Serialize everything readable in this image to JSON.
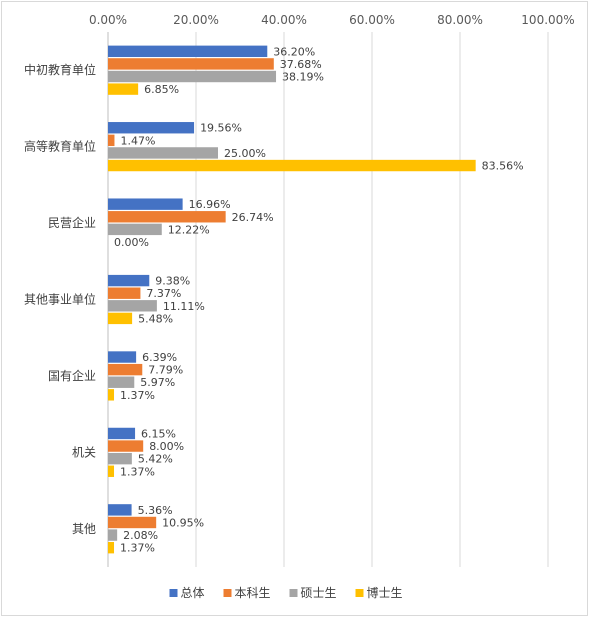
{
  "chart_data": {
    "type": "bar",
    "orientation": "horizontal",
    "categories": [
      "中初教育单位",
      "高等教育单位",
      "民营企业",
      "其他事业单位",
      "国有企业",
      "机关",
      "其他"
    ],
    "series": [
      {
        "name": "总体",
        "color": "#4472c4",
        "values": [
          36.2,
          19.56,
          16.96,
          9.38,
          6.39,
          6.15,
          5.36
        ],
        "labels": [
          "36.20%",
          "19.56%",
          "16.96%",
          "9.38%",
          "6.39%",
          "6.15%",
          "5.36%"
        ]
      },
      {
        "name": "本科生",
        "color": "#ed7d31",
        "values": [
          37.68,
          1.47,
          26.74,
          7.37,
          7.79,
          8.0,
          10.95
        ],
        "labels": [
          "37.68%",
          "1.47%",
          "26.74%",
          "7.37%",
          "7.79%",
          "8.00%",
          "10.95%"
        ]
      },
      {
        "name": "硕士生",
        "color": "#a5a5a5",
        "values": [
          38.19,
          25.0,
          12.22,
          11.11,
          5.97,
          5.42,
          2.08
        ],
        "labels": [
          "38.19%",
          "25.00%",
          "12.22%",
          "11.11%",
          "5.97%",
          "5.42%",
          "2.08%"
        ]
      },
      {
        "name": "博士生",
        "color": "#ffc000",
        "values": [
          6.85,
          83.56,
          0.0,
          5.48,
          1.37,
          1.37,
          1.37
        ],
        "labels": [
          "6.85%",
          "83.56%",
          "0.00%",
          "5.48%",
          "1.37%",
          "1.37%",
          "1.37%"
        ]
      }
    ],
    "xlim": [
      0,
      100
    ],
    "ticks": [
      0,
      20,
      40,
      60,
      80,
      100
    ],
    "tick_labels": [
      "0.00%",
      "20.00%",
      "40.00%",
      "60.00%",
      "80.00%",
      "100.00%"
    ],
    "x_axis_position": "top",
    "grid": true,
    "legend_position": "bottom",
    "title": "",
    "xlabel": "",
    "ylabel": ""
  }
}
